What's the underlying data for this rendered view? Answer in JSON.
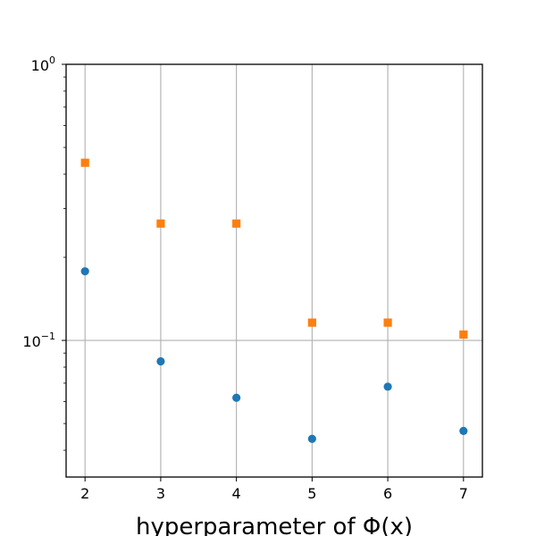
{
  "chart_data": {
    "type": "scatter",
    "title": "",
    "xlabel": "hyperparameter of Φ(x)",
    "ylabel": "",
    "yscale": "log",
    "xlim": [
      1.75,
      7.25
    ],
    "ylim": [
      0.032,
      1.0
    ],
    "grid": true,
    "x_ticks": [
      2,
      3,
      4,
      5,
      6,
      7
    ],
    "x_tick_labels": [
      "2",
      "3",
      "4",
      "5",
      "6",
      "7"
    ],
    "y_ticks": [
      0.1,
      1.0
    ],
    "y_tick_labels": [
      {
        "base": "10",
        "exp": "−1"
      },
      {
        "base": "10",
        "exp": "0"
      }
    ],
    "series": [
      {
        "marker": "circle",
        "color": "#1f77b4",
        "x": [
          2,
          3,
          4,
          5,
          6,
          7
        ],
        "values": [
          0.178,
          0.084,
          0.062,
          0.044,
          0.068,
          0.047
        ]
      },
      {
        "marker": "square",
        "color": "#ff7f0e",
        "x": [
          2,
          3,
          4,
          5,
          6,
          7
        ],
        "values": [
          0.44,
          0.265,
          0.265,
          0.116,
          0.116,
          0.105
        ]
      }
    ]
  }
}
